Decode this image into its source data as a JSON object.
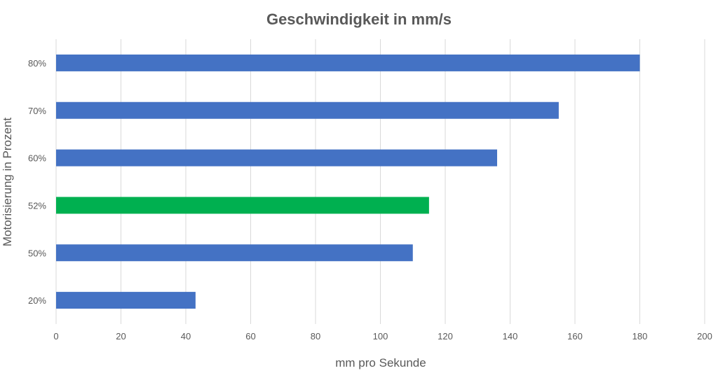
{
  "chart_data": {
    "type": "bar",
    "orientation": "horizontal",
    "title": "Geschwindigkeit in mm/s",
    "xlabel": "mm pro Sekunde",
    "ylabel": "Motorisierung in Prozent",
    "categories": [
      "80%",
      "70%",
      "60%",
      "52%",
      "50%",
      "20%"
    ],
    "values": [
      180,
      155,
      136,
      115,
      110,
      43
    ],
    "bar_colors": [
      "#4472C4",
      "#4472C4",
      "#4472C4",
      "#00B050",
      "#4472C4",
      "#4472C4"
    ],
    "xlim": [
      0,
      200
    ],
    "xticks": [
      "0",
      "20",
      "40",
      "60",
      "80",
      "100",
      "120",
      "140",
      "160",
      "180",
      "200"
    ],
    "grid": "vertical",
    "legend": "none"
  }
}
